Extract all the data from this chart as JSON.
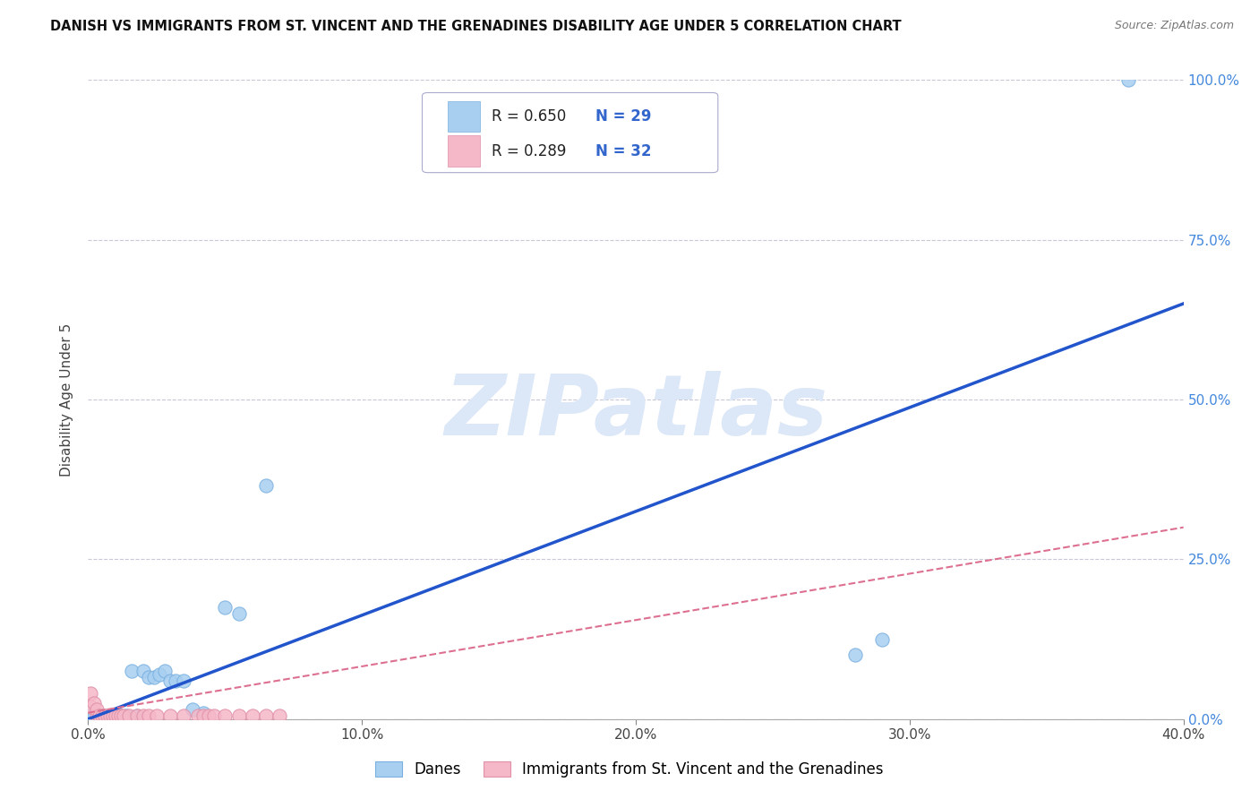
{
  "title": "DANISH VS IMMIGRANTS FROM ST. VINCENT AND THE GRENADINES DISABILITY AGE UNDER 5 CORRELATION CHART",
  "source": "Source: ZipAtlas.com",
  "ylabel": "Disability Age Under 5",
  "xlim": [
    0.0,
    0.4
  ],
  "ylim": [
    0.0,
    1.0
  ],
  "xticks": [
    0.0,
    0.1,
    0.2,
    0.3,
    0.4
  ],
  "yticks_right": [
    0.0,
    0.25,
    0.5,
    0.75,
    1.0
  ],
  "ytick_labels_right": [
    "0.0%",
    "25.0%",
    "50.0%",
    "75.0%",
    "100.0%"
  ],
  "xtick_labels": [
    "0.0%",
    "10.0%",
    "20.0%",
    "30.0%",
    "40.0%"
  ],
  "blue_color": "#a8cff0",
  "blue_edge": "#7ab0e0",
  "pink_color": "#f5b8c8",
  "pink_edge": "#e090a8",
  "trend_blue": "#2255cc",
  "trend_pink": "#dd7090",
  "legend_R1": "R = 0.650",
  "legend_N1": "N = 29",
  "legend_R2": "R = 0.289",
  "legend_N2": "N = 32",
  "watermark": "ZIPatlas",
  "watermark_color": "#dce8f8",
  "legend_label1": "Danes",
  "legend_label2": "Immigrants from St. Vincent and the Grenadines",
  "blue_dots_x": [
    0.001,
    0.002,
    0.003,
    0.004,
    0.005,
    0.006,
    0.007,
    0.008,
    0.01,
    0.012,
    0.014,
    0.016,
    0.018,
    0.02,
    0.022,
    0.024,
    0.026,
    0.028,
    0.03,
    0.032,
    0.035,
    0.038,
    0.042,
    0.05,
    0.055,
    0.065,
    0.28,
    0.29,
    0.38
  ],
  "blue_dots_y": [
    0.005,
    0.005,
    0.005,
    0.005,
    0.005,
    0.005,
    0.005,
    0.005,
    0.005,
    0.005,
    0.005,
    0.075,
    0.005,
    0.075,
    0.065,
    0.065,
    0.07,
    0.075,
    0.06,
    0.06,
    0.06,
    0.015,
    0.01,
    0.175,
    0.165,
    0.365,
    0.1,
    0.125,
    1.0
  ],
  "pink_dots_x": [
    0.001,
    0.001,
    0.002,
    0.003,
    0.003,
    0.004,
    0.005,
    0.006,
    0.006,
    0.007,
    0.008,
    0.009,
    0.01,
    0.011,
    0.012,
    0.013,
    0.015,
    0.018,
    0.02,
    0.022,
    0.025,
    0.03,
    0.035,
    0.04,
    0.042,
    0.044,
    0.046,
    0.05,
    0.055,
    0.06,
    0.065,
    0.07
  ],
  "pink_dots_y": [
    0.02,
    0.04,
    0.025,
    0.005,
    0.015,
    0.005,
    0.005,
    0.005,
    0.005,
    0.005,
    0.005,
    0.005,
    0.005,
    0.005,
    0.005,
    0.005,
    0.005,
    0.005,
    0.005,
    0.005,
    0.005,
    0.005,
    0.005,
    0.005,
    0.005,
    0.005,
    0.005,
    0.005,
    0.005,
    0.005,
    0.005,
    0.005
  ],
  "blue_trend_x0": 0.0,
  "blue_trend_x1": 0.4,
  "blue_trend_y0": 0.0,
  "blue_trend_y1": 0.65,
  "pink_trend_x0": 0.0,
  "pink_trend_x1": 0.4,
  "pink_trend_y0": 0.01,
  "pink_trend_y1": 0.3,
  "background_color": "#ffffff",
  "grid_color": "#c8c8d8",
  "right_axis_color": "#4488dd",
  "title_color": "#111111",
  "source_color": "#777777"
}
